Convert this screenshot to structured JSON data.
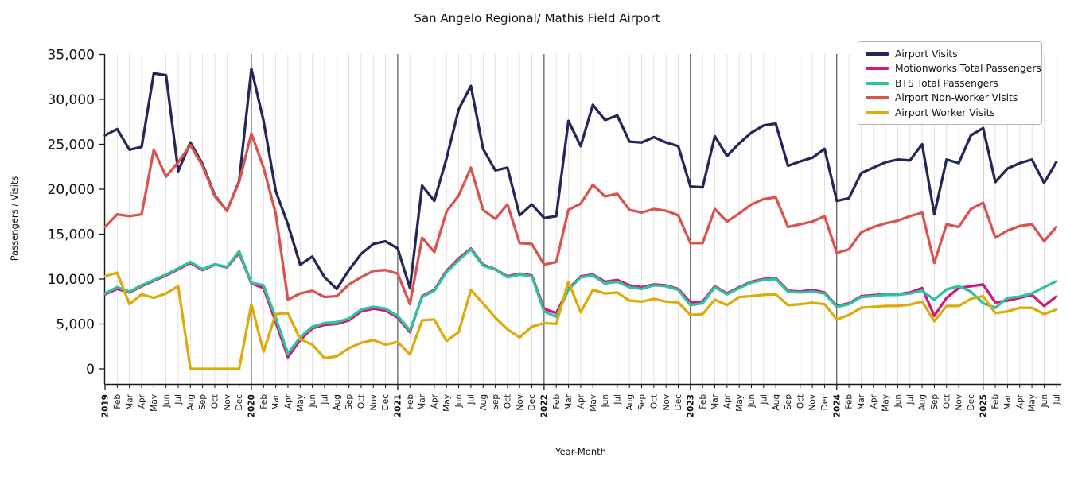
{
  "title": "San Angelo Regional/ Mathis Field Airport",
  "xlabel": "Year-Month",
  "ylabel": "Passengers / Visits",
  "chart_data": {
    "type": "line",
    "title": "San Angelo Regional/ Mathis Field Airport",
    "xlabel": "Year-Month",
    "ylabel": "Passengers / Visits",
    "ylim": [
      0,
      35000
    ],
    "yticks": [
      0,
      5000,
      10000,
      15000,
      20000,
      25000,
      30000,
      35000
    ],
    "grid": "vertical gridline per month (light gray); darker vertical line at each January",
    "legend_position": "upper-right",
    "x_labels": [
      "2019",
      "Feb",
      "Mar",
      "Apr",
      "May",
      "Jun",
      "Jul",
      "Aug",
      "Sep",
      "Oct",
      "Nov",
      "Dec",
      "2020",
      "Feb",
      "Mar",
      "Apr",
      "May",
      "Jun",
      "Jul",
      "Aug",
      "Sep",
      "Oct",
      "Nov",
      "Dec",
      "2021",
      "Feb",
      "Mar",
      "Apr",
      "May",
      "Jun",
      "Jul",
      "Aug",
      "Sep",
      "Oct",
      "Nov",
      "Dec",
      "2022",
      "Feb",
      "Mar",
      "Apr",
      "May",
      "Jun",
      "Jul",
      "Aug",
      "Sep",
      "Oct",
      "Nov",
      "Dec",
      "2023",
      "Feb",
      "Mar",
      "Apr",
      "May",
      "Jun",
      "Jul",
      "Aug",
      "Sep",
      "Oct",
      "Nov",
      "Dec",
      "2024",
      "Feb",
      "Mar",
      "Apr",
      "May",
      "Jun",
      "Jul",
      "Aug",
      "Sep",
      "Oct",
      "Nov",
      "Dec",
      "2025",
      "Feb",
      "Mar",
      "Apr",
      "May",
      "Jun",
      "Jul"
    ],
    "series": [
      {
        "name": "Airport Visits",
        "color": "#242858",
        "values": [
          26000,
          26700,
          24400,
          24700,
          32900,
          32700,
          22000,
          25200,
          22800,
          19300,
          17600,
          20900,
          33400,
          27600,
          19800,
          16100,
          11600,
          12500,
          10200,
          8900,
          11000,
          12800,
          13900,
          14200,
          13400,
          9000,
          20400,
          18700,
          23400,
          28900,
          31500,
          24500,
          22100,
          22400,
          17100,
          18300,
          16800,
          17000,
          27600,
          24800,
          29400,
          27700,
          28200,
          25300,
          25200,
          25800,
          25200,
          24800,
          20300,
          20200,
          25900,
          23700,
          25100,
          26300,
          27100,
          27300,
          22600,
          23100,
          23500,
          24500,
          18700,
          19000,
          21800,
          22400,
          23000,
          23300,
          23200,
          25000,
          17200,
          23300,
          22900,
          26000,
          26800,
          20800,
          22300,
          22900,
          23300,
          20700,
          23000
        ]
      },
      {
        "name": "Motionworks Total Passengers",
        "color": "#d3187c",
        "values": [
          8300,
          8900,
          8500,
          9200,
          9800,
          10400,
          11100,
          11800,
          11000,
          11600,
          11300,
          12900,
          9500,
          9000,
          5200,
          1300,
          3200,
          4500,
          4900,
          5000,
          5400,
          6400,
          6700,
          6500,
          5700,
          4100,
          8100,
          8800,
          10900,
          12300,
          13400,
          11600,
          11100,
          10300,
          10600,
          10400,
          6700,
          6200,
          8900,
          10300,
          10500,
          9700,
          9900,
          9300,
          9100,
          9400,
          9300,
          8900,
          7400,
          7500,
          9200,
          8400,
          9100,
          9700,
          10000,
          10100,
          8700,
          8600,
          8800,
          8500,
          7000,
          7300,
          8100,
          8200,
          8300,
          8300,
          8500,
          9000,
          5900,
          7900,
          9000,
          9200,
          9400,
          7400,
          7600,
          7900,
          8250,
          7000,
          8050
        ]
      },
      {
        "name": "BTS Total Passengers",
        "color": "#2cc3a0",
        "values": [
          8400,
          9100,
          8600,
          9300,
          9900,
          10500,
          11200,
          11900,
          11100,
          11650,
          11350,
          13100,
          9600,
          9300,
          5700,
          1700,
          3500,
          4700,
          5100,
          5200,
          5600,
          6600,
          6900,
          6700,
          5900,
          4300,
          8000,
          8700,
          10750,
          12100,
          13300,
          11500,
          11050,
          10200,
          10500,
          10300,
          6400,
          5800,
          8800,
          10200,
          10400,
          9500,
          9700,
          9100,
          8900,
          9300,
          9200,
          8800,
          7100,
          7300,
          9100,
          8300,
          9000,
          9600,
          9900,
          10000,
          8600,
          8500,
          8600,
          8400,
          6900,
          7200,
          8000,
          8100,
          8250,
          8250,
          8400,
          8700,
          7700,
          8850,
          9200,
          8600,
          7300,
          6800,
          7900,
          8050,
          8400,
          9100,
          9750
        ]
      },
      {
        "name": "Airport Non-Worker Visits",
        "color": "#d95450",
        "values": [
          15800,
          17200,
          17000,
          17200,
          24400,
          21400,
          23000,
          24900,
          22600,
          19200,
          17600,
          20800,
          26200,
          22400,
          17300,
          7700,
          8400,
          8700,
          8000,
          8100,
          9400,
          10200,
          10900,
          11000,
          10600,
          7200,
          14600,
          13000,
          17500,
          19300,
          22400,
          17700,
          16700,
          18300,
          14000,
          13900,
          11600,
          11900,
          17700,
          18400,
          20500,
          19200,
          19500,
          17700,
          17400,
          17800,
          17600,
          17100,
          14000,
          14000,
          17800,
          16400,
          17300,
          18300,
          18900,
          19100,
          15800,
          16100,
          16400,
          17000,
          12900,
          13300,
          15200,
          15800,
          16200,
          16500,
          17000,
          17400,
          11800,
          16100,
          15800,
          17800,
          18500,
          14600,
          15400,
          15900,
          16100,
          14200,
          15800
        ]
      },
      {
        "name": "Airport Worker Visits",
        "color": "#dcab0c",
        "values": [
          10300,
          10700,
          7200,
          8300,
          7900,
          8400,
          9200,
          0,
          0,
          0,
          0,
          0,
          7200,
          1900,
          6100,
          6200,
          3300,
          2700,
          1200,
          1400,
          2300,
          2900,
          3200,
          2700,
          3000,
          1600,
          5400,
          5500,
          3100,
          4100,
          8800,
          7300,
          5700,
          4400,
          3500,
          4700,
          5100,
          5000,
          9700,
          6300,
          8800,
          8400,
          8500,
          7600,
          7500,
          7800,
          7500,
          7400,
          6000,
          6100,
          7700,
          7100,
          8000,
          8100,
          8250,
          8300,
          7100,
          7200,
          7350,
          7200,
          5500,
          6000,
          6800,
          6900,
          7000,
          7000,
          7150,
          7500,
          5300,
          7000,
          7000,
          7800,
          8100,
          6200,
          6400,
          6800,
          6800,
          6100,
          6600
        ]
      }
    ]
  }
}
